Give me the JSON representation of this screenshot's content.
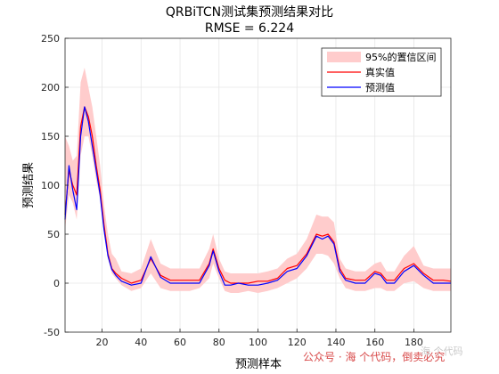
{
  "chart_data": {
    "type": "line",
    "title": "QRBiTCN测试集预测结果对比",
    "subtitle": "RMSE = 6.224",
    "xlabel": "预测样本",
    "ylabel": "预测结果",
    "xlim": [
      1,
      199
    ],
    "ylim": [
      -50,
      250
    ],
    "xticks": [
      20,
      40,
      60,
      80,
      100,
      120,
      140,
      160,
      180
    ],
    "yticks": [
      -50,
      0,
      50,
      100,
      150,
      200,
      250
    ],
    "grid": true,
    "legend_position": "top-right",
    "colors": {
      "band": "#ffcccc",
      "actual": "#ff0000",
      "predicted": "#0000ff"
    },
    "x": [
      1,
      3,
      5,
      7,
      9,
      11,
      13,
      15,
      17,
      19,
      21,
      23,
      25,
      27,
      30,
      35,
      40,
      45,
      50,
      55,
      60,
      65,
      70,
      75,
      77,
      80,
      83,
      86,
      90,
      95,
      100,
      105,
      110,
      115,
      120,
      125,
      130,
      133,
      136,
      139,
      142,
      145,
      150,
      155,
      160,
      163,
      166,
      170,
      175,
      180,
      185,
      190,
      195,
      199
    ],
    "series": [
      {
        "name": "95%的置信区间",
        "type": "band",
        "lower": [
          55,
          90,
          82,
          65,
          130,
          150,
          150,
          130,
          105,
          85,
          50,
          25,
          10,
          5,
          -2,
          -8,
          -5,
          10,
          -5,
          -8,
          -8,
          -8,
          -5,
          5,
          20,
          5,
          -8,
          -10,
          -10,
          -8,
          -10,
          -8,
          -5,
          0,
          5,
          15,
          30,
          30,
          28,
          20,
          5,
          -5,
          -8,
          -8,
          -5,
          -5,
          -8,
          -8,
          0,
          2,
          -5,
          -8,
          -8,
          -8
        ],
        "upper": [
          150,
          140,
          125,
          130,
          205,
          220,
          200,
          180,
          150,
          120,
          80,
          50,
          30,
          25,
          12,
          10,
          15,
          45,
          20,
          15,
          15,
          15,
          15,
          35,
          50,
          25,
          12,
          10,
          10,
          10,
          10,
          12,
          15,
          25,
          30,
          45,
          70,
          68,
          68,
          62,
          25,
          15,
          12,
          12,
          20,
          22,
          12,
          12,
          28,
          38,
          18,
          15,
          15,
          15
        ]
      },
      {
        "name": "真实值",
        "type": "line",
        "values": [
          70,
          115,
          100,
          90,
          160,
          180,
          170,
          150,
          120,
          95,
          60,
          30,
          15,
          10,
          5,
          0,
          3,
          25,
          8,
          3,
          3,
          3,
          3,
          20,
          35,
          15,
          3,
          0,
          0,
          0,
          2,
          2,
          5,
          15,
          18,
          30,
          50,
          48,
          50,
          42,
          15,
          5,
          3,
          3,
          12,
          10,
          3,
          3,
          15,
          20,
          10,
          3,
          3,
          2
        ]
      },
      {
        "name": "预测值",
        "type": "line",
        "values": [
          65,
          120,
          95,
          75,
          150,
          180,
          165,
          140,
          115,
          90,
          55,
          28,
          14,
          8,
          2,
          -2,
          0,
          27,
          6,
          0,
          0,
          0,
          0,
          18,
          33,
          12,
          -2,
          -2,
          0,
          -2,
          -2,
          0,
          3,
          12,
          15,
          28,
          48,
          45,
          48,
          40,
          12,
          3,
          0,
          0,
          10,
          8,
          0,
          0,
          12,
          18,
          8,
          0,
          0,
          0
        ]
      }
    ]
  },
  "watermark": {
    "left": "公众号 · 海 个代码，",
    "right": "倒卖必究",
    "ghost": "海 个代码"
  }
}
